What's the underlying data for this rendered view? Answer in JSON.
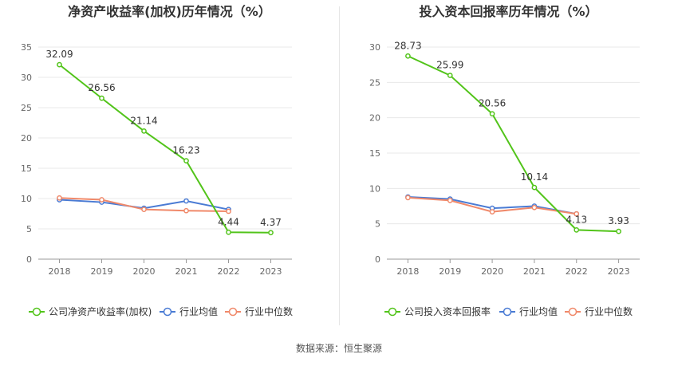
{
  "charts": [
    {
      "title": "净资产收益率(加权)历年情况（%）",
      "chart_data": {
        "type": "line",
        "categories": [
          "2018",
          "2019",
          "2020",
          "2021",
          "2022",
          "2023"
        ],
        "ylim": [
          0,
          35
        ],
        "yticks": [
          0,
          5,
          10,
          15,
          20,
          25,
          30,
          35
        ],
        "grid": true,
        "legend_position": "bottom-left",
        "series": [
          {
            "name": "公司净资产收益率(加权)",
            "color": "#52c41a",
            "values": [
              32.09,
              26.56,
              21.14,
              16.23,
              4.44,
              4.37
            ],
            "labels": [
              "32.09",
              "26.56",
              "21.14",
              "16.23",
              "4.44",
              "4.37"
            ]
          },
          {
            "name": "行业均值",
            "color": "#4a7bd4",
            "values": [
              9.8,
              9.4,
              8.4,
              9.6,
              8.2,
              null
            ]
          },
          {
            "name": "行业中位数",
            "color": "#f0896a",
            "values": [
              10.1,
              9.8,
              8.2,
              8.0,
              7.9,
              null
            ]
          }
        ]
      }
    },
    {
      "title": "投入资本回报率历年情况（%）",
      "chart_data": {
        "type": "line",
        "categories": [
          "2018",
          "2019",
          "2020",
          "2021",
          "2022",
          "2023"
        ],
        "ylim": [
          0,
          30
        ],
        "yticks": [
          0,
          5,
          10,
          15,
          20,
          25,
          30
        ],
        "grid": true,
        "legend_position": "bottom-left",
        "series": [
          {
            "name": "公司投入资本回报率",
            "color": "#52c41a",
            "values": [
              28.73,
              25.99,
              20.56,
              10.14,
              4.13,
              3.93
            ],
            "labels": [
              "28.73",
              "25.99",
              "20.56",
              "10.14",
              "4.13",
              "3.93"
            ]
          },
          {
            "name": "行业均值",
            "color": "#4a7bd4",
            "values": [
              8.8,
              8.5,
              7.2,
              7.5,
              6.4,
              null
            ]
          },
          {
            "name": "行业中位数",
            "color": "#f0896a",
            "values": [
              8.7,
              8.3,
              6.7,
              7.3,
              6.4,
              null
            ]
          }
        ]
      }
    }
  ],
  "source_text": "数据来源：恒生聚源"
}
